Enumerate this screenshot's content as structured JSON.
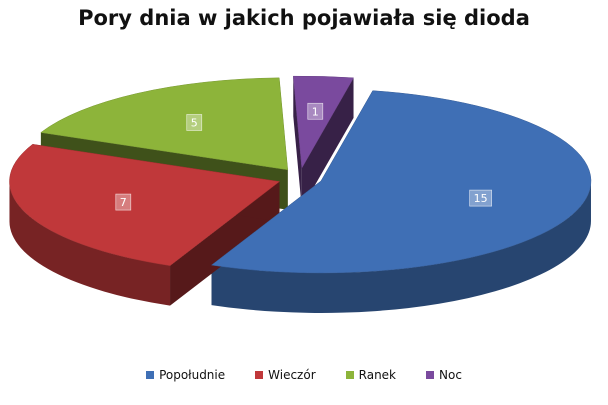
{
  "chart_data": {
    "type": "pie",
    "title": "Pory dnia w jakich pojawiała się dioda",
    "categories": [
      "Popołudnie",
      "Wieczór",
      "Ranek",
      "Noc"
    ],
    "values": [
      15,
      7,
      5,
      1
    ],
    "colors": [
      "#3F6FB5",
      "#C0383A",
      "#8DB43A",
      "#7A4A9E"
    ],
    "legend_position": "bottom",
    "exploded": true,
    "three_d": true
  }
}
